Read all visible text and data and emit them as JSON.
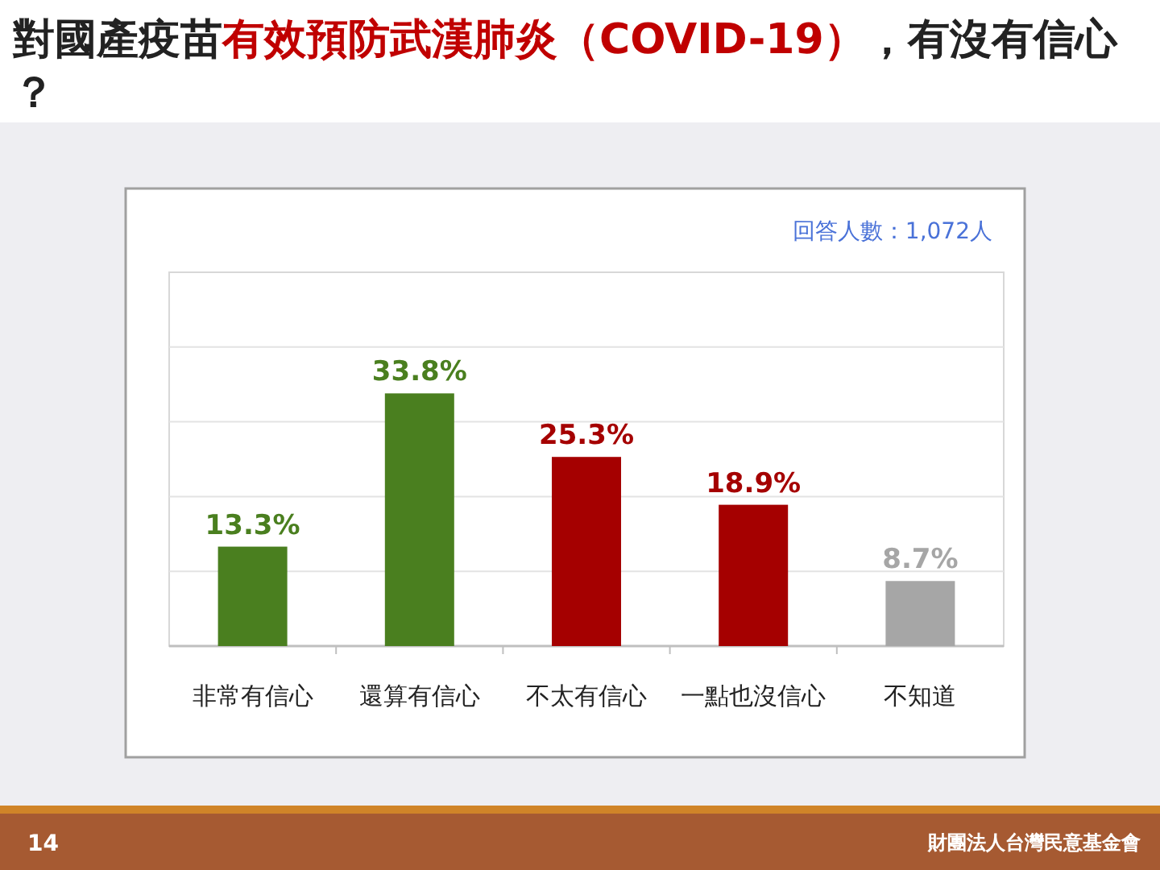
{
  "chart_data": {
    "type": "bar",
    "title": "對國產疫苗**有效預防武漢肺炎（COVID-19）**，有沒有信心？",
    "categories": [
      "非常有信心",
      "還算有信心",
      "不太有信心",
      "一點也沒信心",
      "不知道"
    ],
    "values": [
      13.3,
      33.8,
      25.3,
      18.9,
      8.7
    ],
    "colors": [
      "#4a7f1f",
      "#4a7f1f",
      "#a50000",
      "#a50000",
      "#a6a6a6"
    ],
    "value_labels": [
      "13.3%",
      "33.8%",
      "25.3%",
      "18.9%",
      "8.7%"
    ],
    "ylim": [
      0,
      50
    ],
    "yticks": [
      {
        "value": 10,
        "label": null
      },
      {
        "value": 20,
        "label": null
      },
      {
        "value": 30,
        "label": null
      },
      {
        "value": 40,
        "label": null
      }
    ],
    "grid": "y",
    "tick_labels": "x",
    "annotations": [
      "回答人數：1,072人",
      "14",
      "財團法人台灣民意基金會"
    ]
  }
}
